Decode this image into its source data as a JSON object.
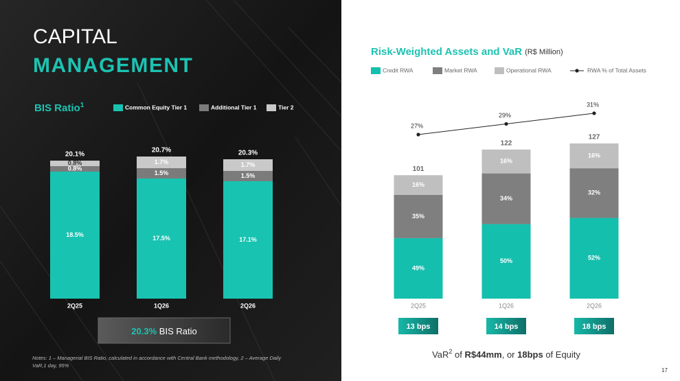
{
  "header": {
    "title_line1": "CAPITAL",
    "title_line2": "MANAGEMENT"
  },
  "chart_data": [
    {
      "type": "bar",
      "stacked": true,
      "title": "BIS Ratio",
      "title_sup": "1",
      "categories": [
        "2Q25",
        "1Q26",
        "2Q26"
      ],
      "series": [
        {
          "name": "Common Equity Tier 1",
          "color": "#19c3b1",
          "values": [
            18.5,
            17.5,
            17.1
          ],
          "value_labels": [
            "18.5%",
            "17.5%",
            "17.1%"
          ]
        },
        {
          "name": "Additional Tier 1",
          "color": "#7b7b7b",
          "values": [
            0.8,
            1.5,
            1.5
          ],
          "value_labels": [
            "0.8%",
            "1.5%",
            "1.5%"
          ]
        },
        {
          "name": "Tier 2",
          "color": "#c9c9c9",
          "values": [
            0.8,
            1.7,
            1.7
          ],
          "value_labels": [
            "0.8%",
            "1.7%",
            "1.7%"
          ]
        }
      ],
      "totals": [
        20.1,
        20.7,
        20.3
      ],
      "total_labels": [
        "20.1%",
        "20.7%",
        "20.3%"
      ]
    },
    {
      "type": "bar",
      "stacked": true,
      "stack_mode": "percent",
      "title": "Risk-Weighted Assets and VaR",
      "subtitle": "(R$ Million)",
      "categories": [
        "2Q25",
        "1Q26",
        "2Q26"
      ],
      "series": [
        {
          "name": "Credit RWA",
          "color": "#14bfae",
          "values": [
            49,
            50,
            52
          ],
          "value_labels": [
            "49%",
            "50%",
            "52%"
          ]
        },
        {
          "name": "Market RWA",
          "color": "#7f7f7f",
          "values": [
            35,
            34,
            32
          ],
          "value_labels": [
            "35%",
            "34%",
            "32%"
          ]
        },
        {
          "name": "Operational RWA",
          "color": "#bfbfbf",
          "values": [
            16,
            16,
            16
          ],
          "value_labels": [
            "16%",
            "16%",
            "16%"
          ]
        },
        {
          "name": "RWA % of Total Assets",
          "type": "line",
          "color": "#222222",
          "values": [
            27,
            29,
            31
          ],
          "value_labels": [
            "27%",
            "29%",
            "31%"
          ]
        }
      ],
      "totals": [
        101,
        122,
        127
      ],
      "var_badges": [
        "13 bps",
        "14 bps",
        "18 bps"
      ]
    }
  ],
  "callout": {
    "value": "20.3%",
    "text": " BIS Ratio"
  },
  "footer": {
    "parts": [
      "VaR",
      "2",
      " of ",
      "R$44mm",
      ", or ",
      "18bps",
      " of Equity"
    ]
  },
  "notes": [
    "Notes: 1 – Managerial BIS Ratio, calculated in accordance with Central Bank methodology, 2 – Average Daily",
    "VaR,1 day, 95%"
  ],
  "page_number": "17"
}
